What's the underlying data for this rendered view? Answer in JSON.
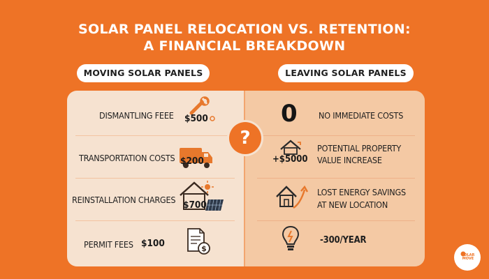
{
  "title": {
    "line1": "SOLAR PANEL RELOCATION VS. RETENTION:",
    "line2": "A FINANCIAL BREAKDOWN"
  },
  "left_header": "MOVING SOLAR PANELS",
  "right_header": "LEAVING SOLAR PANELS",
  "center_symbol": "?",
  "moving": [
    {
      "label": "DISMANTLING FEEE",
      "amount": "$500",
      "icon": "wrench-icon"
    },
    {
      "label": "TRANSPORTATION COSTS",
      "amount": "$200",
      "icon": "truck-icon"
    },
    {
      "label": "REINSTALLATION CHARGES",
      "amount": "$700",
      "icon": "house-solar-icon"
    },
    {
      "label": "PERMIT FEES",
      "amount": "$100",
      "icon": "document-dollar-icon"
    }
  ],
  "leaving": [
    {
      "value": "0",
      "label": "NO IMMEDIATE COSTS"
    },
    {
      "value": "+$5000",
      "label_line1": "POTENTIAL PROPERTY",
      "label_line2": "VALUE INCREASE",
      "icon": "house-arrow-icon"
    },
    {
      "label_line1": "LOST ENERGY SAVINGS",
      "label_line2": "AT NEW LOCATION",
      "icon": "house-growth-icon"
    },
    {
      "label": "-300/YEAR",
      "icon": "lightbulb-icon"
    }
  ],
  "brand": {
    "logo_text": "SOLAR MOVE",
    "icon": "sun-logo-icon"
  }
}
